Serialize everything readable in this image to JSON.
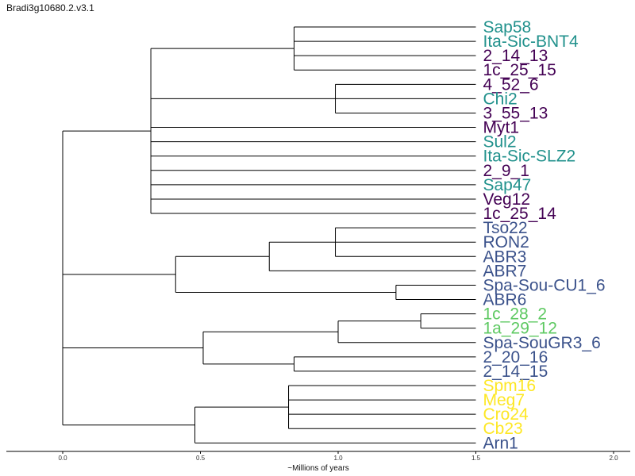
{
  "title": "Bradi3g10680.2.v3.1",
  "xlabel": "~Millions of years",
  "colors": {
    "purple": "#440154",
    "teal": "#21918c",
    "blue": "#3b528b",
    "green": "#5ec962",
    "yellow": "#fde725",
    "branch": "#000000"
  },
  "chart_data": {
    "type": "dendrogram",
    "xlim": [
      0,
      2.0
    ],
    "ticks": [
      "0.0",
      "0.5",
      "1.0",
      "1.5",
      "2.0"
    ],
    "leaves": [
      {
        "name": "Sap58",
        "color": "teal"
      },
      {
        "name": "Ita-Sic-BNT4",
        "color": "teal"
      },
      {
        "name": "2_14_13",
        "color": "purple"
      },
      {
        "name": "1c_25_15",
        "color": "purple"
      },
      {
        "name": "4_52_6",
        "color": "purple"
      },
      {
        "name": "Chi2",
        "color": "teal"
      },
      {
        "name": "3_55_13",
        "color": "purple"
      },
      {
        "name": "Myt1",
        "color": "purple"
      },
      {
        "name": "Sul2",
        "color": "teal"
      },
      {
        "name": "Ita-Sic-SLZ2",
        "color": "teal"
      },
      {
        "name": "2_9_1",
        "color": "purple"
      },
      {
        "name": "Sap47",
        "color": "teal"
      },
      {
        "name": "Veg12",
        "color": "purple"
      },
      {
        "name": "1c_25_14",
        "color": "purple"
      },
      {
        "name": "Tso22",
        "color": "blue"
      },
      {
        "name": "RON2",
        "color": "blue"
      },
      {
        "name": "ABR3",
        "color": "blue"
      },
      {
        "name": "ABR7",
        "color": "blue"
      },
      {
        "name": "Spa-Sou-CU1_6",
        "color": "blue"
      },
      {
        "name": "ABR6",
        "color": "blue"
      },
      {
        "name": "1c_28_2",
        "color": "green"
      },
      {
        "name": "1a_29_12",
        "color": "green"
      },
      {
        "name": "Spa-SouGR3_6",
        "color": "blue"
      },
      {
        "name": "2_20_16",
        "color": "blue"
      },
      {
        "name": "2_14_15",
        "color": "blue"
      },
      {
        "name": "Spm16",
        "color": "yellow"
      },
      {
        "name": "Meg7",
        "color": "yellow"
      },
      {
        "name": "Cro24",
        "color": "yellow"
      },
      {
        "name": "Cb23",
        "color": "yellow"
      },
      {
        "name": "Arn1",
        "color": "blue"
      }
    ],
    "nodes": [
      {
        "id": "n_sap",
        "x": 0.84,
        "children": [
          0,
          1,
          2,
          3
        ]
      },
      {
        "id": "n_chi",
        "x": 0.99,
        "children": [
          4,
          5,
          6
        ]
      },
      {
        "id": "n_top",
        "x": 0.32,
        "children": [
          "n_sap",
          "n_chi",
          7,
          8,
          9,
          10,
          11,
          12,
          13
        ]
      },
      {
        "id": "n_tso",
        "x": 0.99,
        "children": [
          14,
          15,
          16
        ]
      },
      {
        "id": "n_abr7",
        "x": 0.75,
        "children": [
          "n_tso",
          17
        ]
      },
      {
        "id": "n_spa",
        "x": 1.21,
        "children": [
          18,
          19
        ]
      },
      {
        "id": "n_blue1",
        "x": 0.41,
        "children": [
          "n_abr7",
          "n_spa"
        ]
      },
      {
        "id": "n_green",
        "x": 1.3,
        "children": [
          20,
          21
        ]
      },
      {
        "id": "n_gr3",
        "x": 1.0,
        "children": [
          "n_green",
          22
        ]
      },
      {
        "id": "n_220",
        "x": 0.84,
        "children": [
          23,
          24
        ]
      },
      {
        "id": "n_mix",
        "x": 0.51,
        "children": [
          "n_gr3",
          "n_220"
        ]
      },
      {
        "id": "n_yel",
        "x": 0.82,
        "children": [
          25,
          26,
          27,
          28
        ]
      },
      {
        "id": "n_arn",
        "x": 0.48,
        "children": [
          "n_yel",
          29
        ]
      },
      {
        "id": "root",
        "x": 0.0,
        "children": [
          "n_top",
          "n_blue1",
          "n_mix",
          "n_arn"
        ]
      }
    ],
    "leaf_x": 1.5
  }
}
